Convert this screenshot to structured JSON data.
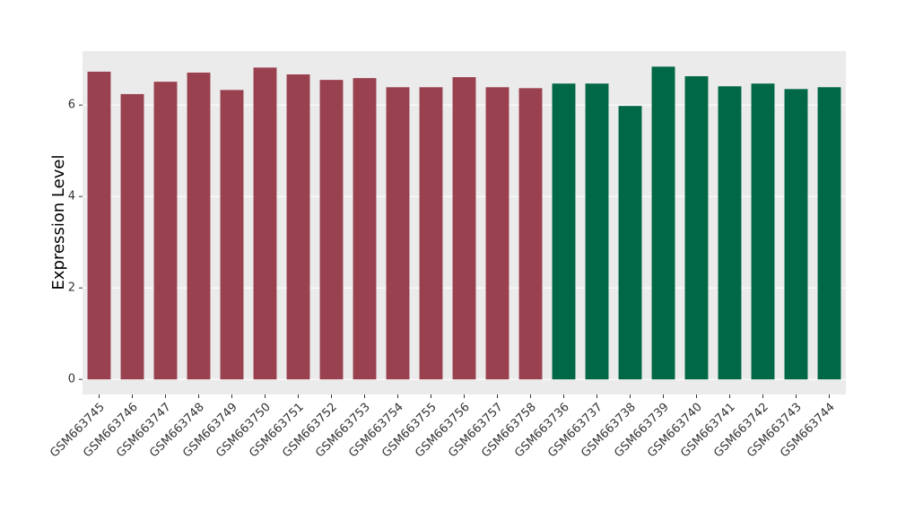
{
  "chart_data": {
    "type": "bar",
    "y_label": "Expression Level",
    "categories": [
      "GSM663745",
      "GSM663746",
      "GSM663747",
      "GSM663748",
      "GSM663749",
      "GSM663750",
      "GSM663751",
      "GSM663752",
      "GSM663753",
      "GSM663754",
      "GSM663755",
      "GSM663756",
      "GSM663757",
      "GSM663758",
      "GSM663736",
      "GSM663737",
      "GSM663738",
      "GSM663739",
      "GSM663740",
      "GSM663741",
      "GSM663742",
      "GSM663743",
      "GSM663744"
    ],
    "values": [
      6.73,
      6.24,
      6.51,
      6.71,
      6.33,
      6.82,
      6.67,
      6.55,
      6.59,
      6.39,
      6.39,
      6.61,
      6.39,
      6.37,
      6.47,
      6.47,
      5.98,
      6.84,
      6.63,
      6.41,
      6.47,
      6.35,
      6.39
    ],
    "colors": [
      "#9a4150",
      "#9a4150",
      "#9a4150",
      "#9a4150",
      "#9a4150",
      "#9a4150",
      "#9a4150",
      "#9a4150",
      "#9a4150",
      "#9a4150",
      "#9a4150",
      "#9a4150",
      "#9a4150",
      "#9a4150",
      "#006747",
      "#006747",
      "#006747",
      "#006747",
      "#006747",
      "#006747",
      "#006747",
      "#006747",
      "#006747"
    ],
    "ylim": [
      -0.33,
      7.18
    ],
    "yticks": [
      0,
      2,
      4,
      6
    ],
    "grid": true,
    "panel_color": "#ebebeb"
  }
}
